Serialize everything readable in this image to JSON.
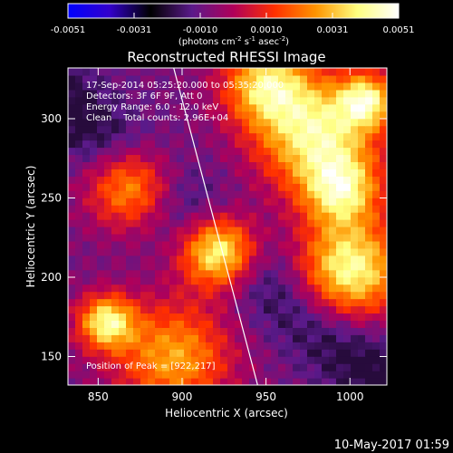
{
  "chart_data": {
    "type": "heatmap",
    "title": "Reconstructed RHESSI Image",
    "colorbar": {
      "ticks": [
        "-0.0051",
        "-0.0031",
        "-0.0010",
        "0.0010",
        "0.0031",
        "0.0051"
      ],
      "range": [
        -0.0051,
        0.0051
      ],
      "units_text": "(photons cm",
      "units_sup1": "-2",
      "units_mid": " s",
      "units_sup2": "-1",
      "units_mid2": " asec",
      "units_sup3": "-2",
      "units_end": ")",
      "stops": [
        "#0000ff",
        "#3300cc",
        "#000000",
        "#5a1a8a",
        "#b0005a",
        "#ff3000",
        "#ff9500",
        "#ffff80",
        "#ffffff"
      ]
    },
    "xlabel": "Heliocentric X (arcsec)",
    "ylabel": "Heliocentric Y (arcsec)",
    "xlim": [
      832,
      1022
    ],
    "ylim": [
      132,
      332
    ],
    "xticks": [
      "850",
      "900",
      "950",
      "1000"
    ],
    "xtick_values": [
      850,
      900,
      950,
      1000
    ],
    "yticks": [
      "150",
      "200",
      "250",
      "300"
    ],
    "ytick_values": [
      150,
      200,
      250,
      300
    ],
    "annotations": {
      "time": "17-Sep-2014 05:25:20.000 to 05:35:20.000",
      "detectors": "Detectors: 3F 6F 9F, Att 0",
      "energy": "Energy Range: 6.0 - 12.0 keV",
      "method": "Clean    Total counts: 2.96E+04",
      "peak": "Position of Peak = [922,217]"
    },
    "limb_line": [
      [
        895,
        332
      ],
      [
        945,
        132
      ]
    ],
    "sources": [
      {
        "x": 922,
        "y": 217,
        "amp": 1.0,
        "w": 16
      },
      {
        "x": 1000,
        "y": 205,
        "amp": 0.85,
        "w": 22
      },
      {
        "x": 980,
        "y": 290,
        "amp": 0.8,
        "w": 25
      },
      {
        "x": 855,
        "y": 172,
        "amp": 0.78,
        "w": 12
      },
      {
        "x": 870,
        "y": 258,
        "amp": 0.7,
        "w": 18
      },
      {
        "x": 950,
        "y": 322,
        "amp": 0.7,
        "w": 18
      },
      {
        "x": 995,
        "y": 255,
        "amp": 0.65,
        "w": 16
      },
      {
        "x": 895,
        "y": 150,
        "amp": 0.6,
        "w": 24
      },
      {
        "x": 1010,
        "y": 312,
        "amp": 0.7,
        "w": 12
      }
    ]
  },
  "footer": {
    "date": "10-May-2017 01:59"
  }
}
